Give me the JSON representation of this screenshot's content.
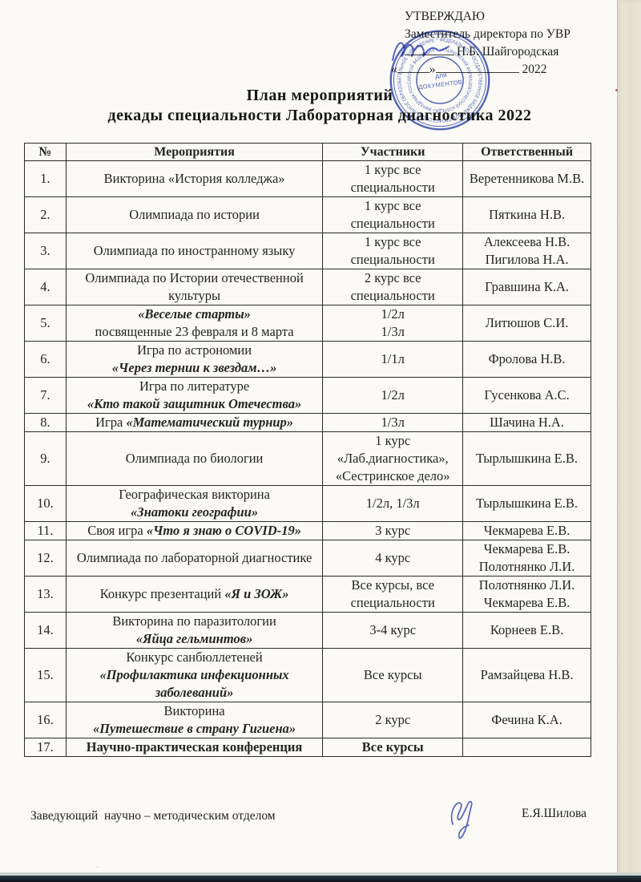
{
  "approval": {
    "approve_word": "УТВЕРЖДАЮ",
    "role": "Заместитель директора по УВР",
    "name": "Н.Б. Шайгородская",
    "quote_open": "«",
    "quote_close": "»",
    "year": "2022"
  },
  "title": {
    "line1": "План мероприятий",
    "line2": "декады специальности Лабораторная диагностика 2022"
  },
  "stamp": {
    "ring_outer": "ФЕДЕРАЛЬНОЕ ГОСУДАРСТВЕННОЕ БЮДЖЕТНОЕ ПРОФЕССИОНАЛЬНОЕ ОБРАЗОВАТЕЛЬНОЕ УЧРЕЖДЕНИЕ *",
    "ring_inner": "«УЛЬЯНОВСКИЙ ФАРМАЦЕВТИЧЕСКИЙ КОЛЛЕДЖ» МИНЗДРАВА РОССИЙСКОЙ ФЕДЕРАЦИИ *",
    "center_line1": "для",
    "center_line2": "ДОКУМЕНТОВ",
    "color": "#3b52b5"
  },
  "table": {
    "headers": [
      "№",
      "Мероприятия",
      "Участники",
      "Ответственный"
    ],
    "rows": [
      {
        "num": "1.",
        "event": [
          "Викторина «История колледжа»"
        ],
        "participants": [
          "1 курс все",
          "специальности"
        ],
        "responsible": [
          "Веретенникова М.В."
        ]
      },
      {
        "num": "2.",
        "event": [
          "Олимпиада по истории"
        ],
        "participants": [
          "1 курс все",
          "специальности"
        ],
        "responsible": [
          "Пяткина Н.В."
        ]
      },
      {
        "num": "3.",
        "event": [
          "Олимпиада по иностранному языку"
        ],
        "participants": [
          "1 курс все",
          "специальности"
        ],
        "responsible": [
          "Алексеева Н.В.",
          "Пигилова Н.А."
        ]
      },
      {
        "num": "4.",
        "event": [
          "Олимпиада по Истории отечественной",
          "культуры"
        ],
        "participants": [
          "2 курс все",
          "специальности"
        ],
        "responsible": [
          "Гравшина К.А."
        ]
      },
      {
        "num": "5.",
        "event": [
          [
            {
              "t": "«Веселые старты»",
              "s": "bi"
            }
          ],
          "посвященные 23 февраля и 8 марта"
        ],
        "participants": [
          "1/2л",
          "1/3л"
        ],
        "responsible": [
          "Литюшов С.И."
        ]
      },
      {
        "num": "6.",
        "event": [
          "Игра по астрономии",
          [
            {
              "t": "«Через тернии к звездам…»",
              "s": "bi"
            }
          ]
        ],
        "participants": [
          "1/1л"
        ],
        "responsible": [
          "Фролова Н.В."
        ]
      },
      {
        "num": "7.",
        "event": [
          "Игра по литературе",
          [
            {
              "t": "«Кто такой защитник Отечества»",
              "s": "bi"
            }
          ]
        ],
        "participants": [
          "1/2л"
        ],
        "responsible": [
          "Гусенкова А.С."
        ]
      },
      {
        "num": "8.",
        "event": [
          [
            "Игра ",
            {
              "t": "«Математический турнир»",
              "s": "bi"
            }
          ]
        ],
        "participants": [
          "1/3л"
        ],
        "responsible": [
          "Шачина Н.А."
        ]
      },
      {
        "num": "9.",
        "event": [
          "Олимпиада по биологии"
        ],
        "participants": [
          "1 курс",
          "«Лаб.диагностика»,",
          "«Сестринское дело»"
        ],
        "responsible": [
          "Тырлышкина Е.В."
        ]
      },
      {
        "num": "10.",
        "event": [
          "Географическая викторина",
          [
            {
              "t": "«Знатоки географии»",
              "s": "bi"
            }
          ]
        ],
        "participants": [
          "1/2л, 1/3л"
        ],
        "responsible": [
          "Тырлышкина Е.В."
        ]
      },
      {
        "num": "11.",
        "event": [
          [
            "Своя игра ",
            {
              "t": "«Что я знаю о COVID-19»",
              "s": "bi"
            }
          ]
        ],
        "participants": [
          "3 курс"
        ],
        "responsible": [
          "Чекмарева Е.В."
        ]
      },
      {
        "num": "12.",
        "event": [
          "Олимпиада по лабораторной диагностике"
        ],
        "participants": [
          "4 курс"
        ],
        "responsible": [
          "Чекмарева Е.В.",
          "Полотнянко Л.И."
        ]
      },
      {
        "num": "13.",
        "event": [
          [
            "Конкурс презентаций ",
            {
              "t": "«Я и ЗОЖ»",
              "s": "bi"
            }
          ]
        ],
        "participants": [
          "Все курсы, все",
          "специальности"
        ],
        "responsible": [
          "Полотнянко Л.И.",
          "Чекмарева Е.В."
        ]
      },
      {
        "num": "14.",
        "event": [
          "Викторина по паразитологии",
          [
            {
              "t": "«Яйца гельминтов»",
              "s": "bi"
            }
          ]
        ],
        "participants": [
          "3-4 курс"
        ],
        "responsible": [
          "Корнеев Е.В."
        ]
      },
      {
        "num": "15.",
        "event": [
          "Конкурс санбюллетеней",
          [
            {
              "t": "«Профилактика инфекционных",
              "s": "bi"
            }
          ],
          [
            {
              "t": "заболеваний»",
              "s": "bi"
            }
          ]
        ],
        "participants": [
          "Все курсы"
        ],
        "responsible": [
          "Рамзайцева Н.В."
        ]
      },
      {
        "num": "16.",
        "event": [
          "Викторина",
          [
            {
              "t": "«Путешествие в страну Гигиена»",
              "s": "bi"
            }
          ]
        ],
        "participants": [
          "2 курс"
        ],
        "responsible": [
          "Фечина К.А."
        ]
      },
      {
        "num": "17.",
        "event": [
          [
            {
              "t": "Научно-практическая конференция",
              "s": "b"
            }
          ]
        ],
        "participants": [
          [
            {
              "t": "Все курсы",
              "s": "b"
            }
          ]
        ],
        "responsible": []
      }
    ]
  },
  "footer": {
    "position": "Заведующий  научно – методическим отделом",
    "name": "Е.Я.Шилова"
  }
}
